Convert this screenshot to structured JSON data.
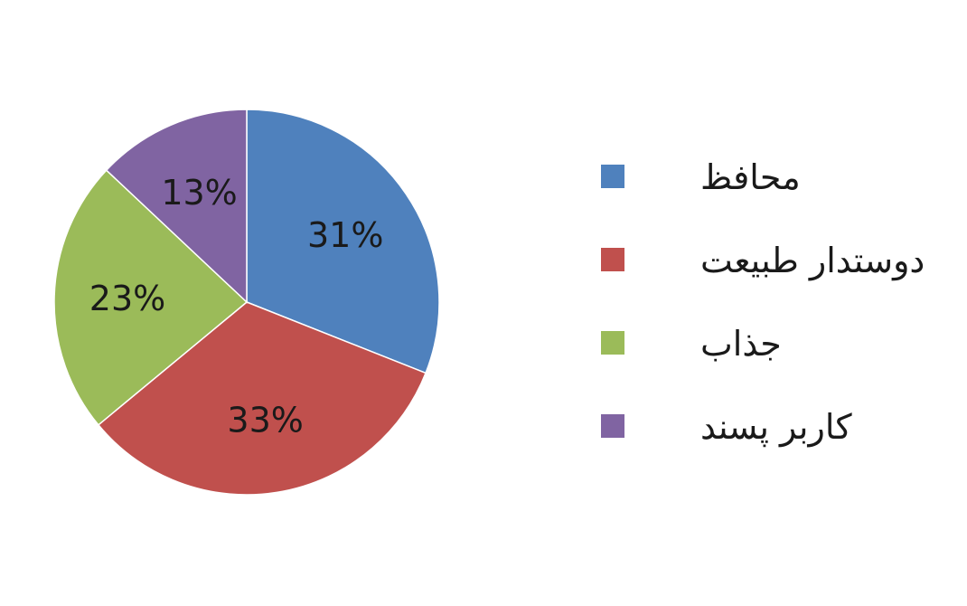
{
  "chart_data": {
    "type": "pie",
    "title": "",
    "legend_position": "right",
    "slices": [
      {
        "name": "محافظ",
        "value": 31,
        "label": "31%",
        "color": "#4f81bd"
      },
      {
        "name": "دوستدار طبیعت",
        "value": 33,
        "label": "33%",
        "color": "#c0504d"
      },
      {
        "name": "جذاب",
        "value": 23,
        "label": "23%",
        "color": "#9bbb59"
      },
      {
        "name": "کاربر پسند",
        "value": 13,
        "label": "13%",
        "color": "#8064a2"
      }
    ]
  }
}
